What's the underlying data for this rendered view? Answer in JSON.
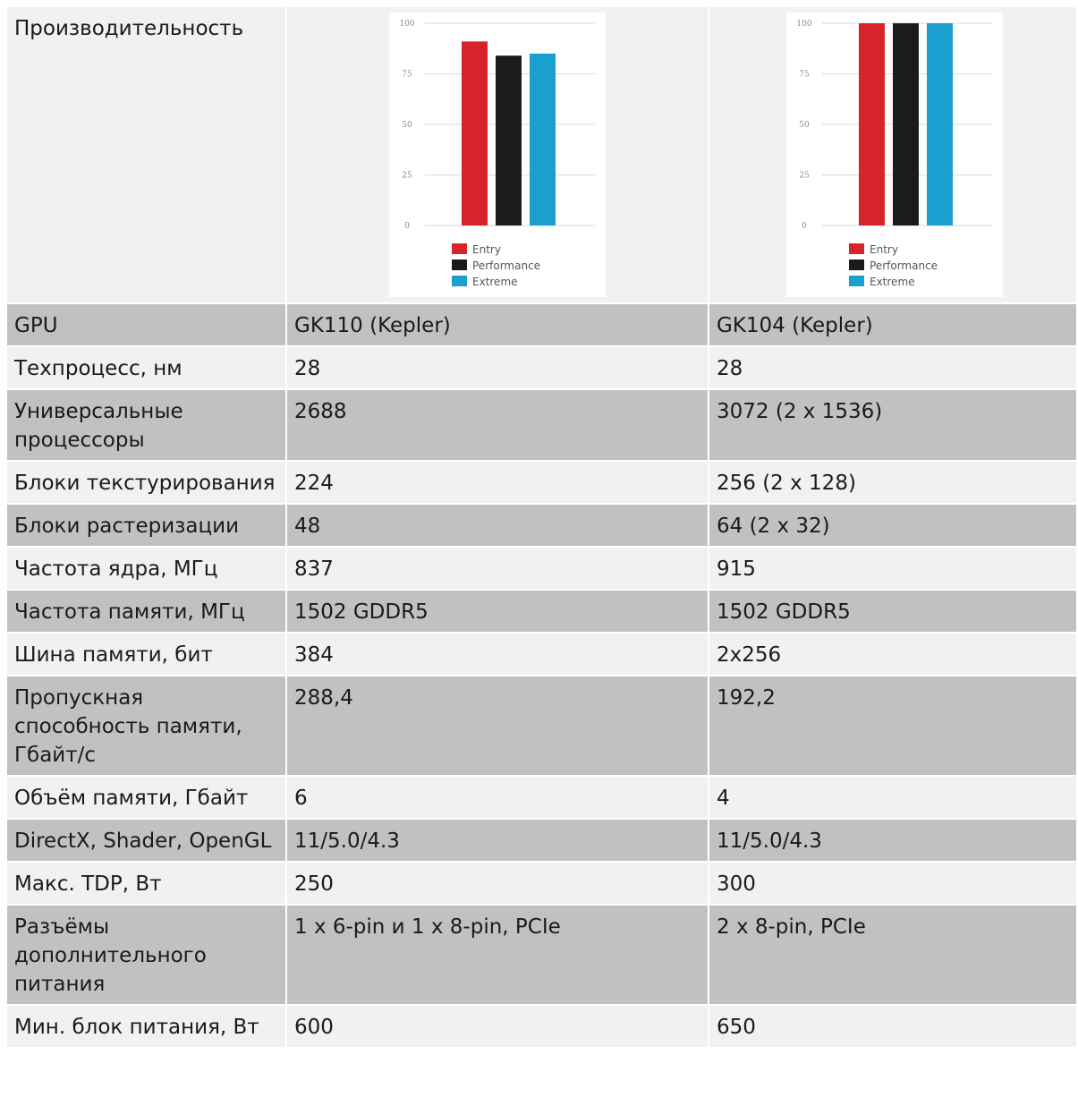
{
  "performance_label": "Производительность",
  "chart_data": [
    {
      "type": "bar",
      "categories": [
        "Entry",
        "Performance",
        "Extreme"
      ],
      "values": [
        91,
        84,
        85
      ],
      "colors": [
        "#d8232a",
        "#1b1b1b",
        "#1a9fcf"
      ],
      "yticks": [
        "100",
        "75",
        "50",
        "25",
        "0"
      ],
      "ylim": [
        0,
        100
      ],
      "legend": [
        "Entry",
        "Performance",
        "Extreme"
      ],
      "legend_position": "bottom-center",
      "grid": true
    },
    {
      "type": "bar",
      "categories": [
        "Entry",
        "Performance",
        "Extreme"
      ],
      "values": [
        100,
        100,
        100
      ],
      "colors": [
        "#d8232a",
        "#1b1b1b",
        "#1a9fcf"
      ],
      "yticks": [
        "100",
        "75",
        "50",
        "25",
        "0"
      ],
      "ylim": [
        0,
        100
      ],
      "legend": [
        "Entry",
        "Performance",
        "Extreme"
      ],
      "legend_position": "bottom-center",
      "grid": true
    }
  ],
  "rows": [
    {
      "label": "GPU",
      "a": "GK110 (Kepler)",
      "b": "GK104 (Kepler)"
    },
    {
      "label": "Техпроцесс, нм",
      "a": "28",
      "b": "28"
    },
    {
      "label": "Универсальные процессоры",
      "a": "2688",
      "b": "3072 (2 x 1536)"
    },
    {
      "label": "Блоки текстурирования",
      "a": "224",
      "b": "256 (2 x 128)"
    },
    {
      "label": "Блоки растеризации",
      "a": "48",
      "b": "64 (2 x 32)"
    },
    {
      "label": "Частота ядра, МГц",
      "a": "837",
      "b": "915"
    },
    {
      "label": "Частота памяти, МГц",
      "a": "1502 GDDR5",
      "b": "1502 GDDR5"
    },
    {
      "label": "Шина памяти, бит",
      "a": "384",
      "b": "2x256"
    },
    {
      "label": "Пропускная способность памяти, Гбайт/с",
      "a": "288,4",
      "b": "192,2"
    },
    {
      "label": "Объём памяти, Гбайт",
      "a": "6",
      "b": "4"
    },
    {
      "label": "DirectX, Shader, OpenGL",
      "a": "11/5.0/4.3",
      "b": "11/5.0/4.3"
    },
    {
      "label": "Макс. TDP, Вт",
      "a": "250",
      "b": "300"
    },
    {
      "label": "Разъёмы дополнительного питания",
      "a": "1 x 6-pin и 1 x 8-pin, PCIe",
      "b": "2 x 8-pin, PCIe"
    },
    {
      "label": "Мин. блок питания, Вт",
      "a": "600",
      "b": "650"
    }
  ]
}
